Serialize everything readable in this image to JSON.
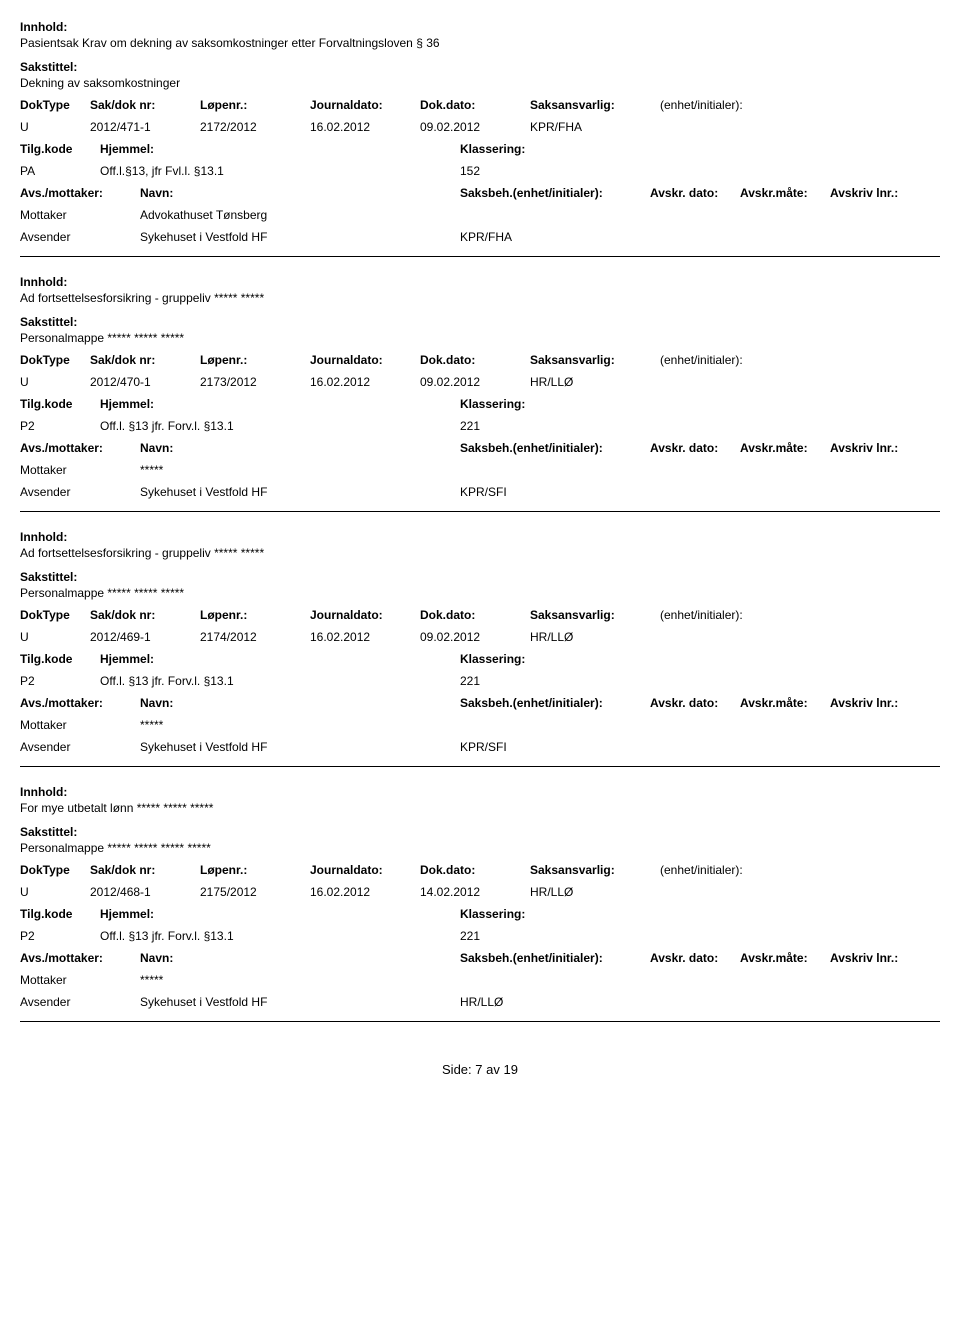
{
  "labels": {
    "innhold": "Innhold:",
    "sakstittel": "Sakstittel:",
    "doktype": "DokType",
    "sakdok": "Sak/dok nr:",
    "lopenr": "Løpenr.:",
    "journaldato": "Journaldato:",
    "dokdato": "Dok.dato:",
    "saksansvarlig": "Saksansvarlig:",
    "enhet": "(enhet/initialer):",
    "tilgkode": "Tilg.kode",
    "hjemmel": "Hjemmel:",
    "klassering": "Klassering:",
    "avsmottaker": "Avs./mottaker:",
    "navn": "Navn:",
    "saksbeh": "Saksbeh.(enhet/initialer):",
    "avskrdato": "Avskr. dato:",
    "avskrmate": "Avskr.måte:",
    "avskrivlnr": "Avskriv lnr.:",
    "mottaker": "Mottaker",
    "avsender": "Avsender"
  },
  "records": [
    {
      "innhold": "Pasientsak Krav om dekning av saksomkostninger etter Forvaltningsloven § 36",
      "sakstittel": "Dekning av saksomkostninger",
      "doktype": "U",
      "sakdok": "2012/471-1",
      "lopenr": "2172/2012",
      "journaldato": "16.02.2012",
      "dokdato": "09.02.2012",
      "saksansvarlig": "KPR/FHA",
      "tilgkode": "PA",
      "hjemmel": "Off.l.§13, jfr Fvl.l. §13.1",
      "klassering": "152",
      "mottaker_navn": "Advokathuset Tønsberg",
      "avsender_navn": "Sykehuset i Vestfold HF",
      "avsender_kode": "KPR/FHA"
    },
    {
      "innhold": "Ad fortsettelsesforsikring - gruppeliv ***** *****",
      "sakstittel": "Personalmappe ***** ***** *****",
      "doktype": "U",
      "sakdok": "2012/470-1",
      "lopenr": "2173/2012",
      "journaldato": "16.02.2012",
      "dokdato": "09.02.2012",
      "saksansvarlig": "HR/LLØ",
      "tilgkode": "P2",
      "hjemmel": "Off.l. §13  jfr. Forv.l. §13.1",
      "klassering": "221",
      "mottaker_navn": "*****",
      "avsender_navn": "Sykehuset i Vestfold HF",
      "avsender_kode": "KPR/SFI"
    },
    {
      "innhold": "Ad fortsettelsesforsikring - gruppeliv ***** *****",
      "sakstittel": "Personalmappe ***** ***** *****",
      "doktype": "U",
      "sakdok": "2012/469-1",
      "lopenr": "2174/2012",
      "journaldato": "16.02.2012",
      "dokdato": "09.02.2012",
      "saksansvarlig": "HR/LLØ",
      "tilgkode": "P2",
      "hjemmel": "Off.l. §13  jfr. Forv.l. §13.1",
      "klassering": "221",
      "mottaker_navn": "*****",
      "avsender_navn": "Sykehuset i Vestfold HF",
      "avsender_kode": "KPR/SFI"
    },
    {
      "innhold": "For mye utbetalt lønn ***** ***** *****",
      "sakstittel": "Personalmappe ***** ***** ***** *****",
      "doktype": "U",
      "sakdok": "2012/468-1",
      "lopenr": "2175/2012",
      "journaldato": "16.02.2012",
      "dokdato": "14.02.2012",
      "saksansvarlig": "HR/LLØ",
      "tilgkode": "P2",
      "hjemmel": "Off.l. §13  jfr. Forv.l. §13.1",
      "klassering": "221",
      "mottaker_navn": "*****",
      "avsender_navn": "Sykehuset i Vestfold HF",
      "avsender_kode": "HR/LLØ"
    }
  ],
  "footer": {
    "side": "Side:",
    "page": "7",
    "av": "av",
    "total": "19"
  }
}
